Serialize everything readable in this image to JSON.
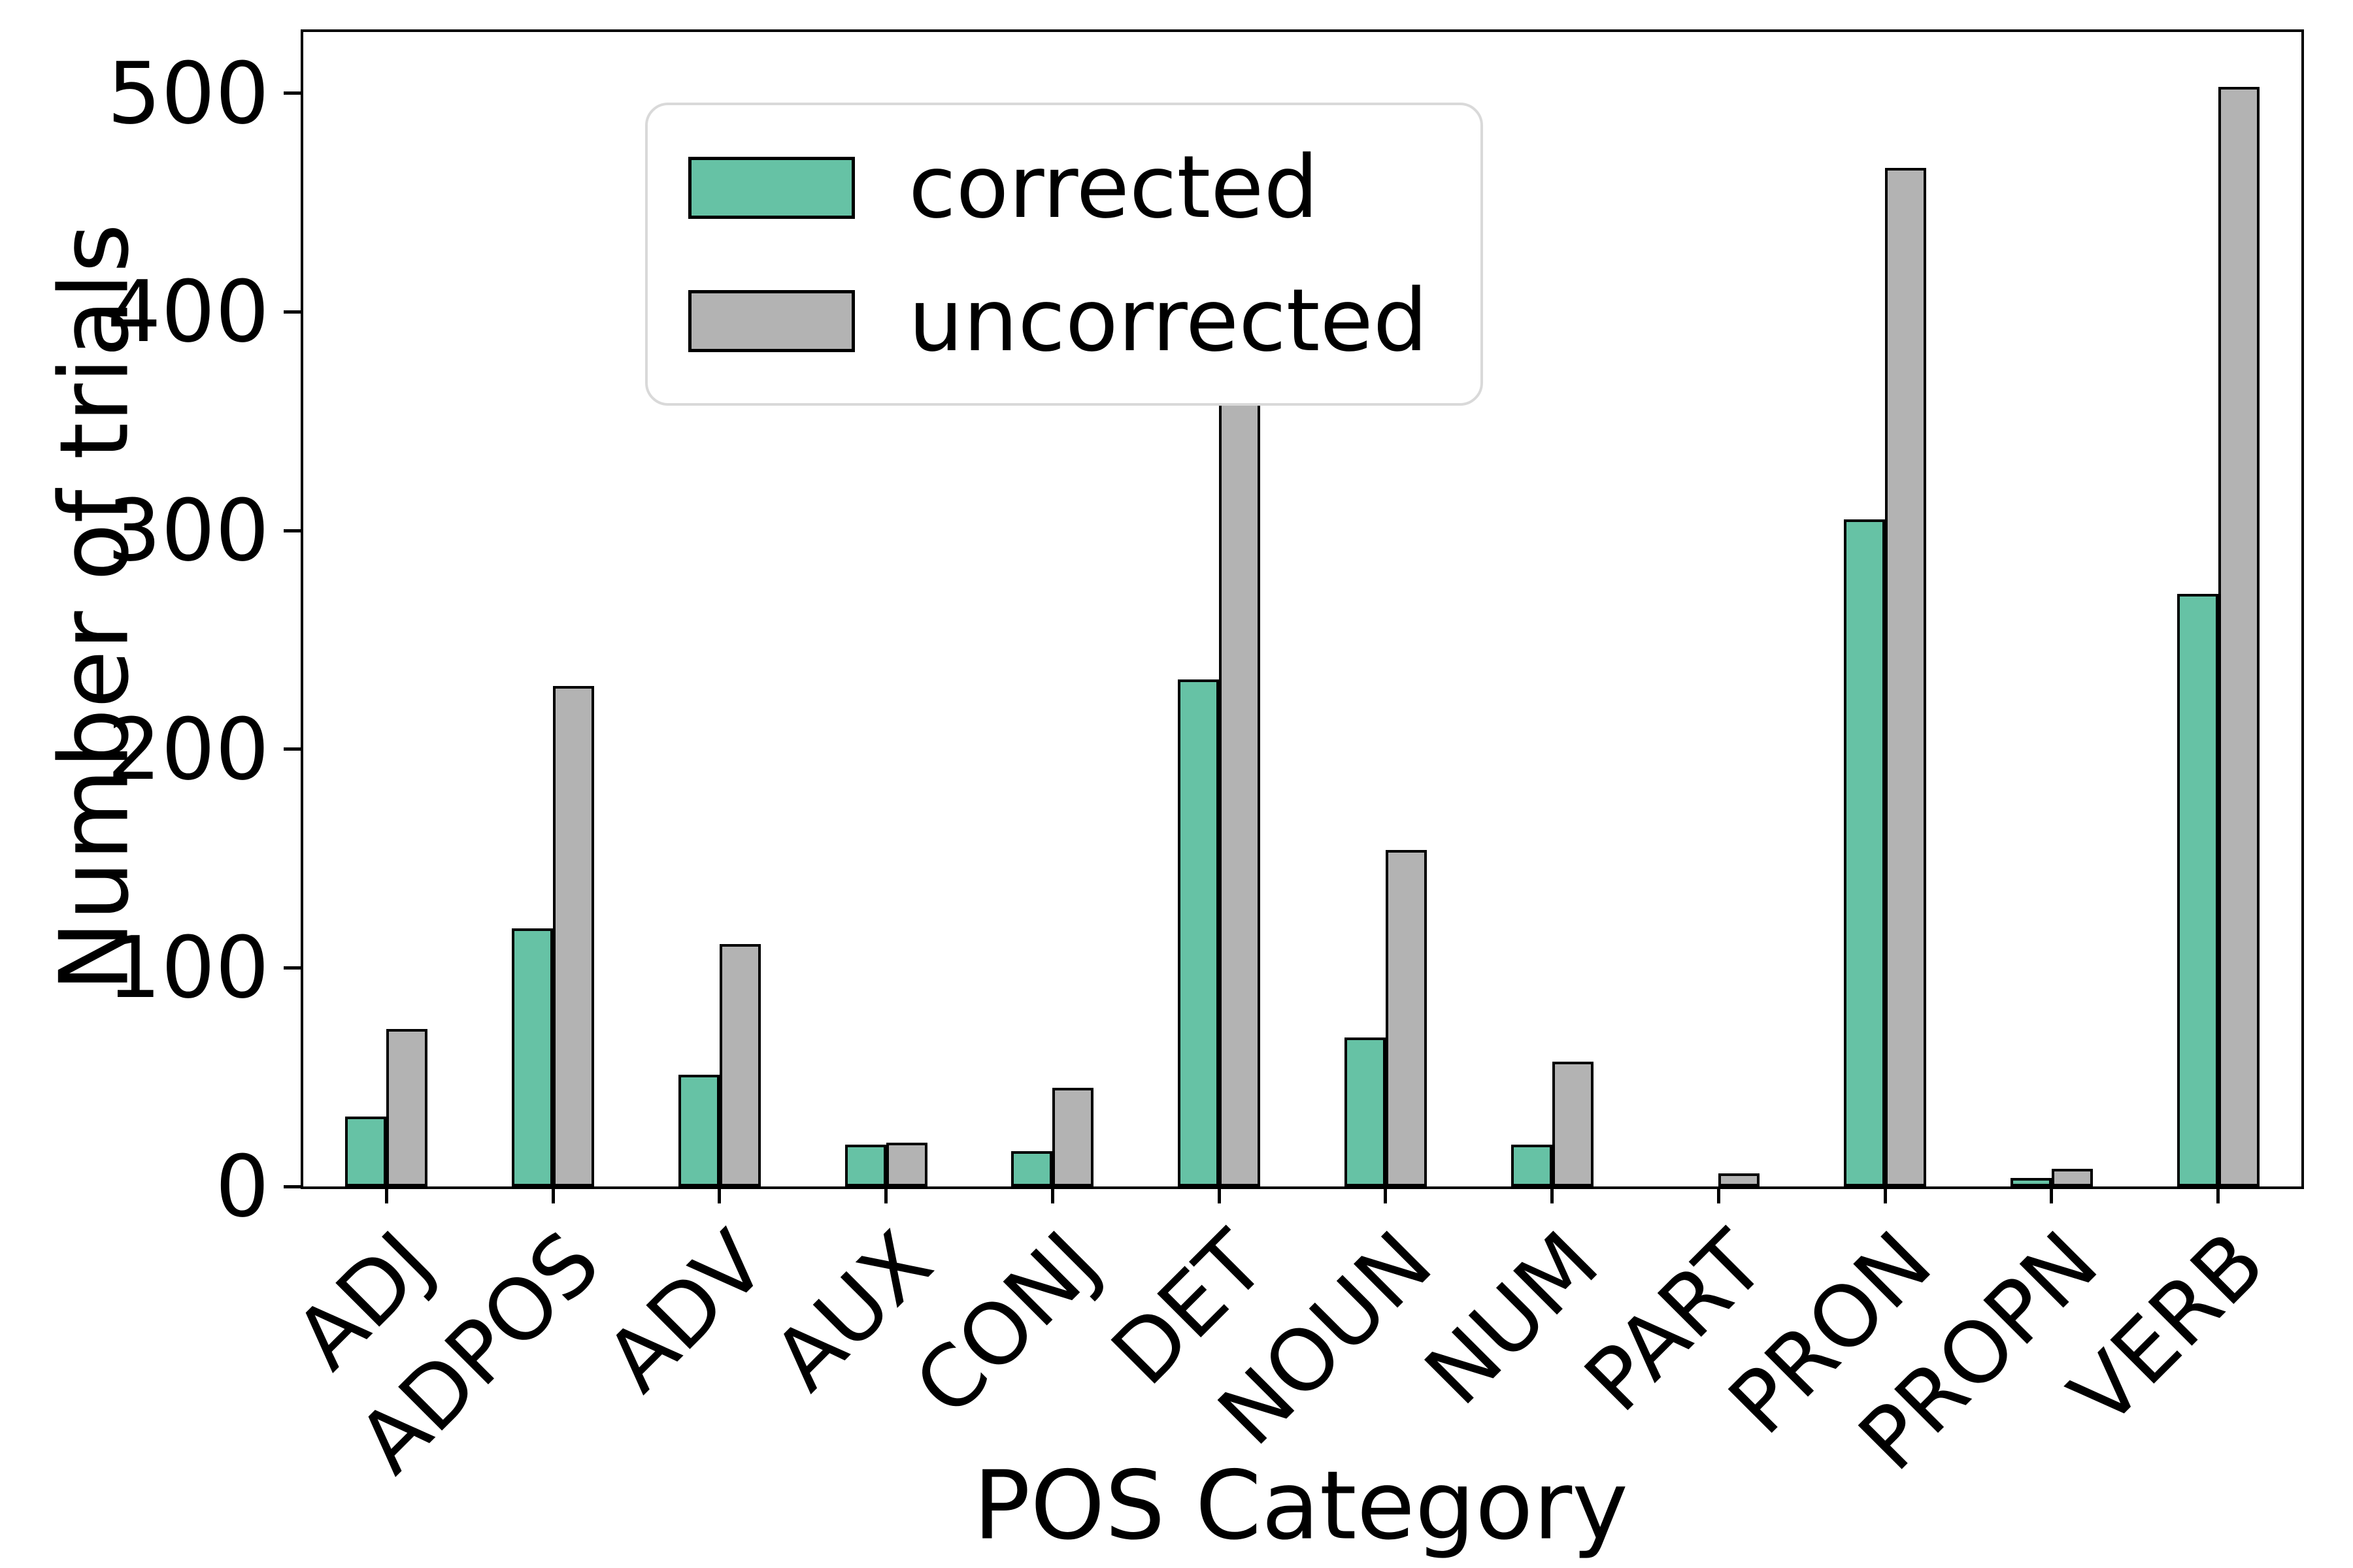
{
  "figure": {
    "background": "#ffffff",
    "ylabel": "Number of trials",
    "xlabel": "POS Category"
  },
  "legend": {
    "position": "upper left",
    "items": [
      {
        "label": "corrected",
        "color": "#66c2a5"
      },
      {
        "label": "uncorrected",
        "color": "#b3b3b3"
      }
    ]
  },
  "chart_data": {
    "type": "bar",
    "title": "",
    "xlabel": "POS Category",
    "ylabel": "Number of trials",
    "categories": [
      "ADJ",
      "ADPOS",
      "ADV",
      "AUX",
      "CONJ",
      "DET",
      "NOUN",
      "NUM",
      "PART",
      "PRON",
      "PROPN",
      "VERB"
    ],
    "series": [
      {
        "name": "corrected",
        "color": "#66c2a5",
        "values": [
          32,
          118,
          51,
          19,
          16,
          232,
          68,
          19,
          0,
          305,
          4,
          271
        ]
      },
      {
        "name": "uncorrected",
        "color": "#b3b3b3",
        "values": [
          72,
          229,
          111,
          20,
          45,
          360,
          154,
          57,
          6,
          466,
          8,
          503
        ]
      }
    ],
    "yticks": [
      0,
      100,
      200,
      300,
      400,
      500
    ],
    "ylim": [
      0,
      528
    ],
    "grid": false,
    "bar_edge_color": "#000000",
    "legend_position": "upper left",
    "xtick_label_rotation_deg": 45
  }
}
